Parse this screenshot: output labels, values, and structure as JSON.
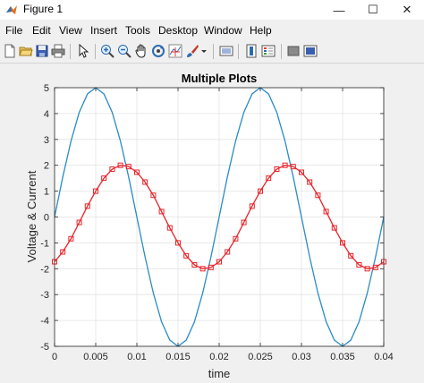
{
  "window": {
    "title": "Figure 1",
    "controls": {
      "minimize": "—",
      "maximize": "☐",
      "close": "✕"
    }
  },
  "menubar": {
    "items": [
      "File",
      "Edit",
      "View",
      "Insert",
      "Tools",
      "Desktop",
      "Window",
      "Help"
    ]
  },
  "toolbar": {
    "icons": [
      "new-figure-icon",
      "open-file-icon",
      "save-icon",
      "print-icon",
      "pointer-icon",
      "zoom-in-icon",
      "zoom-out-icon",
      "pan-icon",
      "rotate-3d-icon",
      "data-cursor-icon",
      "brush-icon",
      "link-plot-icon",
      "colorbar-icon",
      "legend-icon",
      "hide-plot-tools-icon",
      "show-plot-tools-icon"
    ]
  },
  "chart_data": {
    "type": "line",
    "title": "Multiple Plots",
    "xlabel": "time",
    "ylabel": "Voltage & Current",
    "xlim": [
      0,
      0.04
    ],
    "ylim": [
      -5,
      5
    ],
    "xticks": [
      0,
      0.005,
      0.01,
      0.015,
      0.02,
      0.025,
      0.03,
      0.035,
      0.04
    ],
    "xtick_labels": [
      "0",
      "0.005",
      "0.01",
      "0.015",
      "0.02",
      "0.025",
      "0.03",
      "0.035",
      "0.04"
    ],
    "yticks": [
      -5,
      -4,
      -3,
      -2,
      -1,
      0,
      1,
      2,
      3,
      4,
      5
    ],
    "ytick_labels": [
      "-5",
      "-4",
      "-3",
      "-2",
      "-1",
      "0",
      "1",
      "2",
      "3",
      "4",
      "5"
    ],
    "grid": true,
    "series": [
      {
        "color": "#2b8cc4",
        "marker": "none",
        "x": [
          0,
          0.001,
          0.002,
          0.003,
          0.004,
          0.005,
          0.006,
          0.007,
          0.008,
          0.009,
          0.01,
          0.011,
          0.012,
          0.013,
          0.014,
          0.015,
          0.016,
          0.017,
          0.018,
          0.019,
          0.02,
          0.021,
          0.022,
          0.023,
          0.024,
          0.025,
          0.026,
          0.027,
          0.028,
          0.029,
          0.03,
          0.031,
          0.032,
          0.033,
          0.034,
          0.035,
          0.036,
          0.037,
          0.038,
          0.039,
          0.04
        ],
        "y": [
          0,
          1.55,
          2.94,
          4.05,
          4.76,
          5,
          4.76,
          4.05,
          2.94,
          1.55,
          0,
          -1.55,
          -2.94,
          -4.05,
          -4.76,
          -5,
          -4.76,
          -4.05,
          -2.94,
          -1.55,
          0,
          1.55,
          2.94,
          4.05,
          4.76,
          5,
          4.76,
          4.05,
          2.94,
          1.55,
          0,
          -1.55,
          -2.94,
          -4.05,
          -4.76,
          -5,
          -4.76,
          -4.05,
          -2.94,
          -1.55,
          0
        ]
      },
      {
        "color": "#e8252a",
        "marker": "square",
        "x": [
          0,
          0.001,
          0.002,
          0.003,
          0.004,
          0.005,
          0.006,
          0.007,
          0.008,
          0.009,
          0.01,
          0.011,
          0.012,
          0.013,
          0.014,
          0.015,
          0.016,
          0.017,
          0.018,
          0.019,
          0.02,
          0.021,
          0.022,
          0.023,
          0.024,
          0.025,
          0.026,
          0.027,
          0.028,
          0.029,
          0.03,
          0.031,
          0.032,
          0.033,
          0.034,
          0.035,
          0.036,
          0.037,
          0.038,
          0.039,
          0.04
        ],
        "y": [
          -1.73,
          -1.35,
          -0.84,
          -0.21,
          0.42,
          1.0,
          1.5,
          1.85,
          2.0,
          1.95,
          1.73,
          1.35,
          0.84,
          0.21,
          -0.42,
          -1.0,
          -1.5,
          -1.85,
          -2.0,
          -1.95,
          -1.73,
          -1.35,
          -0.84,
          -0.21,
          0.42,
          1.0,
          1.5,
          1.85,
          2.0,
          1.95,
          1.73,
          1.35,
          0.84,
          0.21,
          -0.42,
          -1.0,
          -1.5,
          -1.85,
          -2.0,
          -1.95,
          -1.73
        ]
      }
    ]
  }
}
